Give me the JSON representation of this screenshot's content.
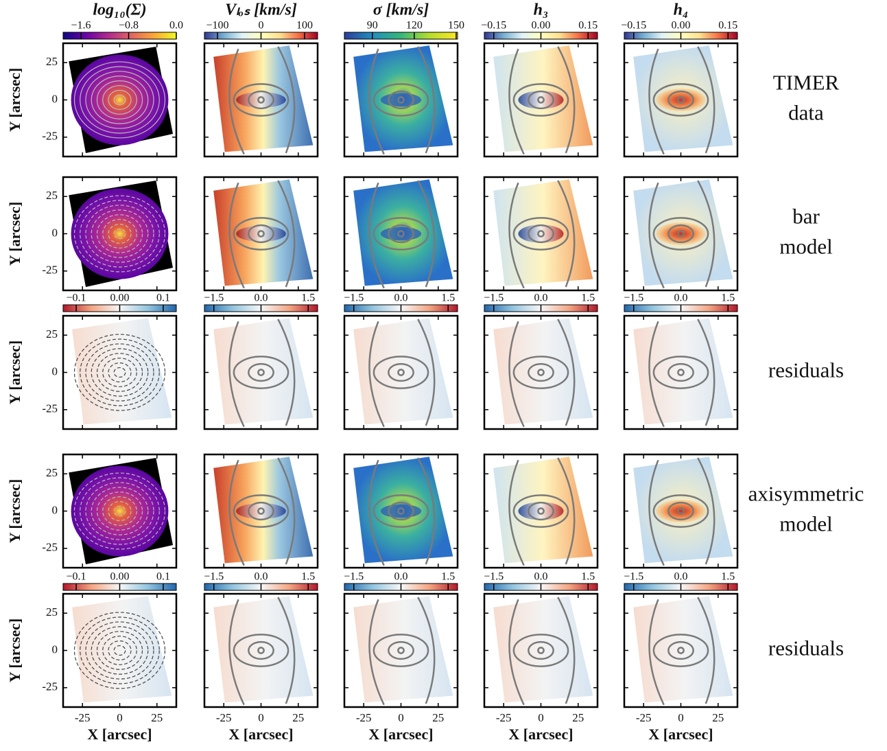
{
  "axes": {
    "xlim": [
      -38,
      38
    ],
    "ylim": [
      -38,
      38
    ],
    "ticks": [
      -25,
      0,
      25
    ],
    "xlabel": "X [arcsec]",
    "ylabel": "Y [arcsec]"
  },
  "columns": [
    {
      "title": "log₁₀(Σ)"
    },
    {
      "title": "Vₗₒₛ [km/s]"
    },
    {
      "title": "σ [km/s]"
    },
    {
      "title": "h₃"
    },
    {
      "title": "h₄"
    }
  ],
  "rows": [
    {
      "label": [
        "TIMER",
        "data"
      ],
      "colorbars": [
        {
          "lim": [
            -1.9,
            0
          ],
          "ticks": [
            {
              "value": -1.6,
              "label": "−1.6"
            },
            {
              "value": -0.8,
              "label": "−0.8"
            },
            {
              "value": 0,
              "label": "0.0"
            }
          ],
          "colors": [
            "#0d0887",
            "#6a00a8",
            "#b12a90",
            "#e16462",
            "#fca636",
            "#f0f921"
          ]
        },
        {
          "lim": [
            -130,
            130
          ],
          "ticks": [
            {
              "value": -100,
              "label": "−100"
            },
            0,
            100
          ],
          "colors": [
            "#313695",
            "#74add1",
            "#e0f3f8",
            "#ffffbf",
            "#fee090",
            "#f46d43",
            "#a50026"
          ]
        },
        {
          "lim": [
            70,
            151
          ],
          "ticks": [
            90,
            120,
            150
          ],
          "colors": [
            "#2c3e9c",
            "#1f8fbf",
            "#35b779",
            "#b5de2b",
            "#fde725"
          ]
        },
        {
          "lim": [
            -0.18,
            0.18
          ],
          "ticks": [
            {
              "value": -0.15,
              "label": "−0.15"
            },
            {
              "value": 0,
              "label": "0.00"
            },
            0.15
          ],
          "colors": [
            "#313695",
            "#74add1",
            "#e0f3f8",
            "#ffffbf",
            "#fee090",
            "#f46d43",
            "#a50026"
          ]
        },
        {
          "lim": [
            -0.18,
            0.18
          ],
          "ticks": [
            {
              "value": -0.15,
              "label": "−0.15"
            },
            {
              "value": 0,
              "label": "0.00"
            },
            0.15
          ],
          "colors": [
            "#313695",
            "#74add1",
            "#e0f3f8",
            "#ffffbf",
            "#fee090",
            "#f46d43",
            "#a50026"
          ]
        }
      ]
    },
    {
      "label": [
        "bar",
        "model"
      ]
    },
    {
      "label": [
        "residuals"
      ],
      "colorbars": [
        {
          "lim": [
            -0.13,
            0.13
          ],
          "ticks": [
            {
              "value": -0.1,
              "label": "−0.1"
            },
            {
              "value": 0,
              "label": "0.00"
            },
            0.1
          ],
          "colors": [
            "#b2182b",
            "#f4a582",
            "#f7f7f7",
            "#92c5de",
            "#2166ac"
          ]
        },
        {
          "lim": [
            -1.8,
            1.8
          ],
          "ticks": [
            {
              "value": -1.5,
              "label": "−1.5"
            },
            {
              "value": 0,
              "label": "0.0"
            },
            1.5
          ],
          "colors": [
            "#2166ac",
            "#92c5de",
            "#f7f7f7",
            "#f4a582",
            "#b2182b"
          ]
        },
        {
          "lim": [
            -1.8,
            1.8
          ],
          "ticks": [
            {
              "value": -1.5,
              "label": "−1.5"
            },
            {
              "value": 0,
              "label": "0.0"
            },
            1.5
          ],
          "colors": [
            "#2166ac",
            "#92c5de",
            "#f7f7f7",
            "#f4a582",
            "#b2182b"
          ]
        },
        {
          "lim": [
            -1.8,
            1.8
          ],
          "ticks": [
            {
              "value": -1.5,
              "label": "−1.5"
            },
            {
              "value": 0,
              "label": "0.0"
            },
            1.5
          ],
          "colors": [
            "#2166ac",
            "#92c5de",
            "#f7f7f7",
            "#f4a582",
            "#b2182b"
          ]
        },
        {
          "lim": [
            -1.8,
            1.8
          ],
          "ticks": [
            {
              "value": -1.5,
              "label": "−1.5"
            },
            {
              "value": 0,
              "label": "0.0"
            },
            1.5
          ],
          "colors": [
            "#2166ac",
            "#92c5de",
            "#f7f7f7",
            "#f4a582",
            "#b2182b"
          ]
        }
      ]
    },
    {
      "label": [
        "axisymmetric",
        "model"
      ]
    },
    {
      "label": [
        "residuals"
      ],
      "colorbars": [
        {
          "lim": [
            -0.13,
            0.13
          ],
          "ticks": [
            {
              "value": -0.1,
              "label": "−0.1"
            },
            {
              "value": 0,
              "label": "0.00"
            },
            0.1
          ],
          "colors": [
            "#b2182b",
            "#f4a582",
            "#f7f7f7",
            "#92c5de",
            "#2166ac"
          ]
        },
        {
          "lim": [
            -1.8,
            1.8
          ],
          "ticks": [
            {
              "value": -1.5,
              "label": "−1.5"
            },
            {
              "value": 0,
              "label": "0.0"
            },
            1.5
          ],
          "colors": [
            "#2166ac",
            "#92c5de",
            "#f7f7f7",
            "#f4a582",
            "#b2182b"
          ]
        },
        {
          "lim": [
            -1.8,
            1.8
          ],
          "ticks": [
            {
              "value": -1.5,
              "label": "−1.5"
            },
            {
              "value": 0,
              "label": "0.0"
            },
            1.5
          ],
          "colors": [
            "#2166ac",
            "#92c5de",
            "#f7f7f7",
            "#f4a582",
            "#b2182b"
          ]
        },
        {
          "lim": [
            -1.8,
            1.8
          ],
          "ticks": [
            {
              "value": -1.5,
              "label": "−1.5"
            },
            {
              "value": 0,
              "label": "0.0"
            },
            1.5
          ],
          "colors": [
            "#2166ac",
            "#92c5de",
            "#f7f7f7",
            "#f4a582",
            "#b2182b"
          ]
        },
        {
          "lim": [
            -1.8,
            1.8
          ],
          "ticks": [
            {
              "value": -1.5,
              "label": "−1.5"
            },
            {
              "value": 0,
              "label": "0.0"
            },
            1.5
          ],
          "colors": [
            "#2166ac",
            "#92c5de",
            "#f7f7f7",
            "#f4a582",
            "#b2182b"
          ]
        }
      ]
    }
  ]
}
